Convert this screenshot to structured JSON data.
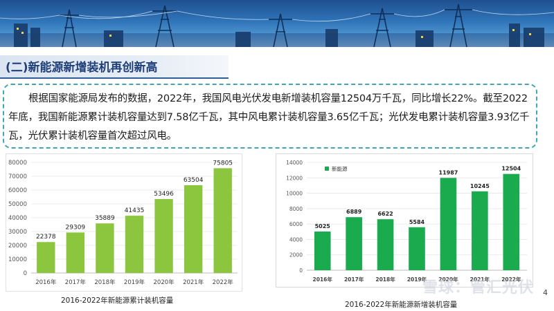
{
  "section_title": "(二)新能源新增装机再创新高",
  "paragraph": "根据国家能源局发布的数据，2022年，我国风电光伏发电新增装机容量12504万千瓦，同比增长22%。截至2022年底，我国新能源累计装机容量达到7.58亿千瓦，其中风电累计装机容量3.65亿千瓦；光伏发电累计装机容量3.93亿千瓦，光伏累计装机容量首次超过风电。",
  "page_number": "4",
  "watermark": "雪球：管汇光伏",
  "colors": {
    "bar_cumulative": "#8cc63f",
    "bar_new": "#1aab4f",
    "title_color": "#1f3f7a",
    "border_dashed": "#3aa8b8"
  },
  "chart_data": [
    {
      "type": "bar",
      "categories": [
        "2016年",
        "2017年",
        "2018年",
        "2019年",
        "2020年",
        "2021年",
        "2022年"
      ],
      "values": [
        22378,
        29309,
        35889,
        41435,
        53496,
        63504,
        75805
      ],
      "ylim": [
        0,
        80000
      ],
      "yticks": [
        0,
        10000,
        20000,
        30000,
        40000,
        50000,
        60000,
        70000,
        80000
      ],
      "grid": true,
      "title": "",
      "caption": "2016-2022年新能源累计装机容量"
    },
    {
      "type": "bar",
      "categories": [
        "2016年",
        "2017年",
        "2018年",
        "2019年",
        "2020年",
        "2021年",
        "2022年"
      ],
      "series": [
        {
          "name": "新能源",
          "values": [
            5025,
            6889,
            6622,
            5584,
            11987,
            10245,
            12504
          ]
        }
      ],
      "ylim": [
        0,
        14000
      ],
      "yticks": [
        0,
        2000,
        4000,
        6000,
        8000,
        10000,
        12000,
        14000
      ],
      "grid": true,
      "legend": "top-left",
      "caption": "2016-2022年新能源新增装机容量"
    }
  ]
}
